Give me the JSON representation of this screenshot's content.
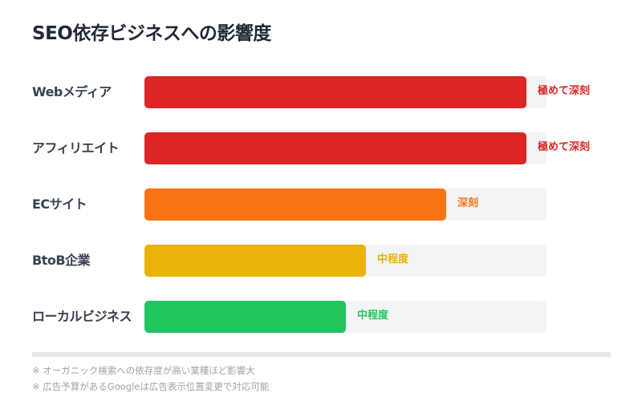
{
  "title": "SEO依存ビジネスへの影響度",
  "chart_data": {
    "type": "bar",
    "orientation": "horizontal",
    "title": "SEO依存ビジネスへの影響度",
    "categories": [
      "Webメディア",
      "アフィリエイト",
      "ECサイト",
      "BtoB企業",
      "ローカルビジネス"
    ],
    "values": [
      95,
      95,
      75,
      55,
      50
    ],
    "value_labels": [
      "極めて深刻",
      "極めて深刻",
      "深刻",
      "中程度",
      "中程度"
    ],
    "colors": [
      "#dc2626",
      "#dc2626",
      "#f97316",
      "#eab308",
      "#22c55e"
    ],
    "xlim": [
      0,
      100
    ],
    "grid": false,
    "legend": "none",
    "xlabel": "",
    "ylabel": ""
  },
  "rows": [
    {
      "label": "Webメディア",
      "level": "極めて深刻",
      "pct": 95,
      "color": "#dc2626"
    },
    {
      "label": "アフィリエイト",
      "level": "極めて深刻",
      "pct": 95,
      "color": "#dc2626"
    },
    {
      "label": "ECサイト",
      "level": "深刻",
      "pct": 75,
      "color": "#f97316"
    },
    {
      "label": "BtoB企業",
      "level": "中程度",
      "pct": 55,
      "color": "#eab308"
    },
    {
      "label": "ローカルビジネス",
      "level": "中程度",
      "pct": 50,
      "color": "#22c55e"
    }
  ],
  "notes": [
    "※ オーガニック検索への依存度が高い業種ほど影響大",
    "※ 広告予算があるGoogleは広告表示位置変更で対応可能"
  ]
}
